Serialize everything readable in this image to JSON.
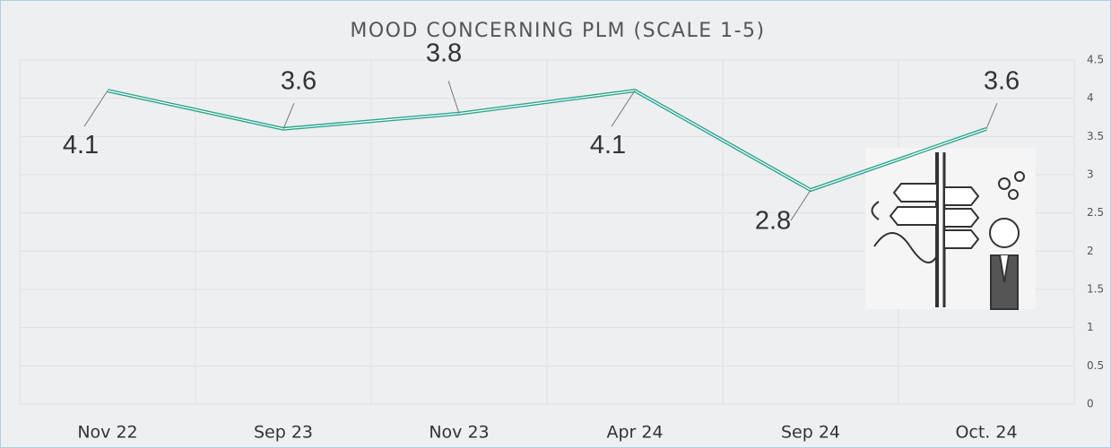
{
  "chart_data": {
    "type": "line",
    "title": "MOOD CONCERNING PLM (SCALE 1-5)",
    "categories": [
      "Nov 22",
      "Sep 23",
      "Nov 23",
      "Apr 24",
      "Sep 24",
      "Oct. 24"
    ],
    "values": [
      4.1,
      3.6,
      3.8,
      4.1,
      2.8,
      3.6
    ],
    "color": "#2aa58f",
    "ylim": [
      0,
      4.5
    ],
    "yticks": [
      0,
      0.5,
      1,
      1.5,
      2,
      2.5,
      3,
      3.5,
      4,
      4.5
    ],
    "grid": true
  }
}
